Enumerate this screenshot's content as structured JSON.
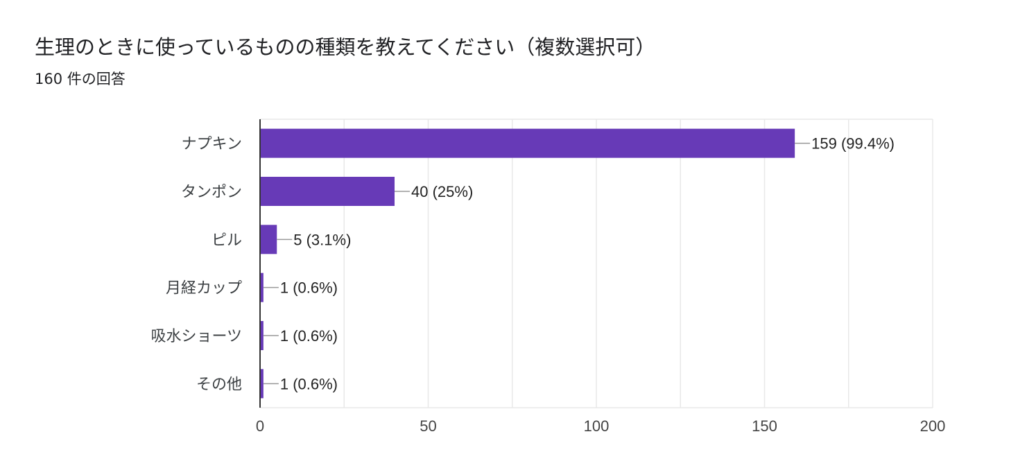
{
  "question": {
    "title": "生理のときに使っているものの種類を教えてください（複数選択可）",
    "response_count": "160 件の回答"
  },
  "chart_data": {
    "type": "bar",
    "orientation": "horizontal",
    "categories": [
      "ナプキン",
      "タンポン",
      "ピル",
      "月経カップ",
      "吸水ショーツ",
      "その他"
    ],
    "values": [
      159,
      40,
      5,
      1,
      1,
      1
    ],
    "value_labels": [
      "159 (99.4%)",
      "40 (25%)",
      "5 (3.1%)",
      "1 (0.6%)",
      "1 (0.6%)",
      "1 (0.6%)"
    ],
    "xlim": [
      0,
      200
    ],
    "x_ticks": [
      0,
      50,
      100,
      150,
      200
    ],
    "x_tick_labels": [
      "0",
      "50",
      "100",
      "150",
      "200"
    ],
    "grid": true,
    "bar_color": "#673ab7",
    "grid_color": "#e8e8e8",
    "leader_color": "#999999"
  }
}
